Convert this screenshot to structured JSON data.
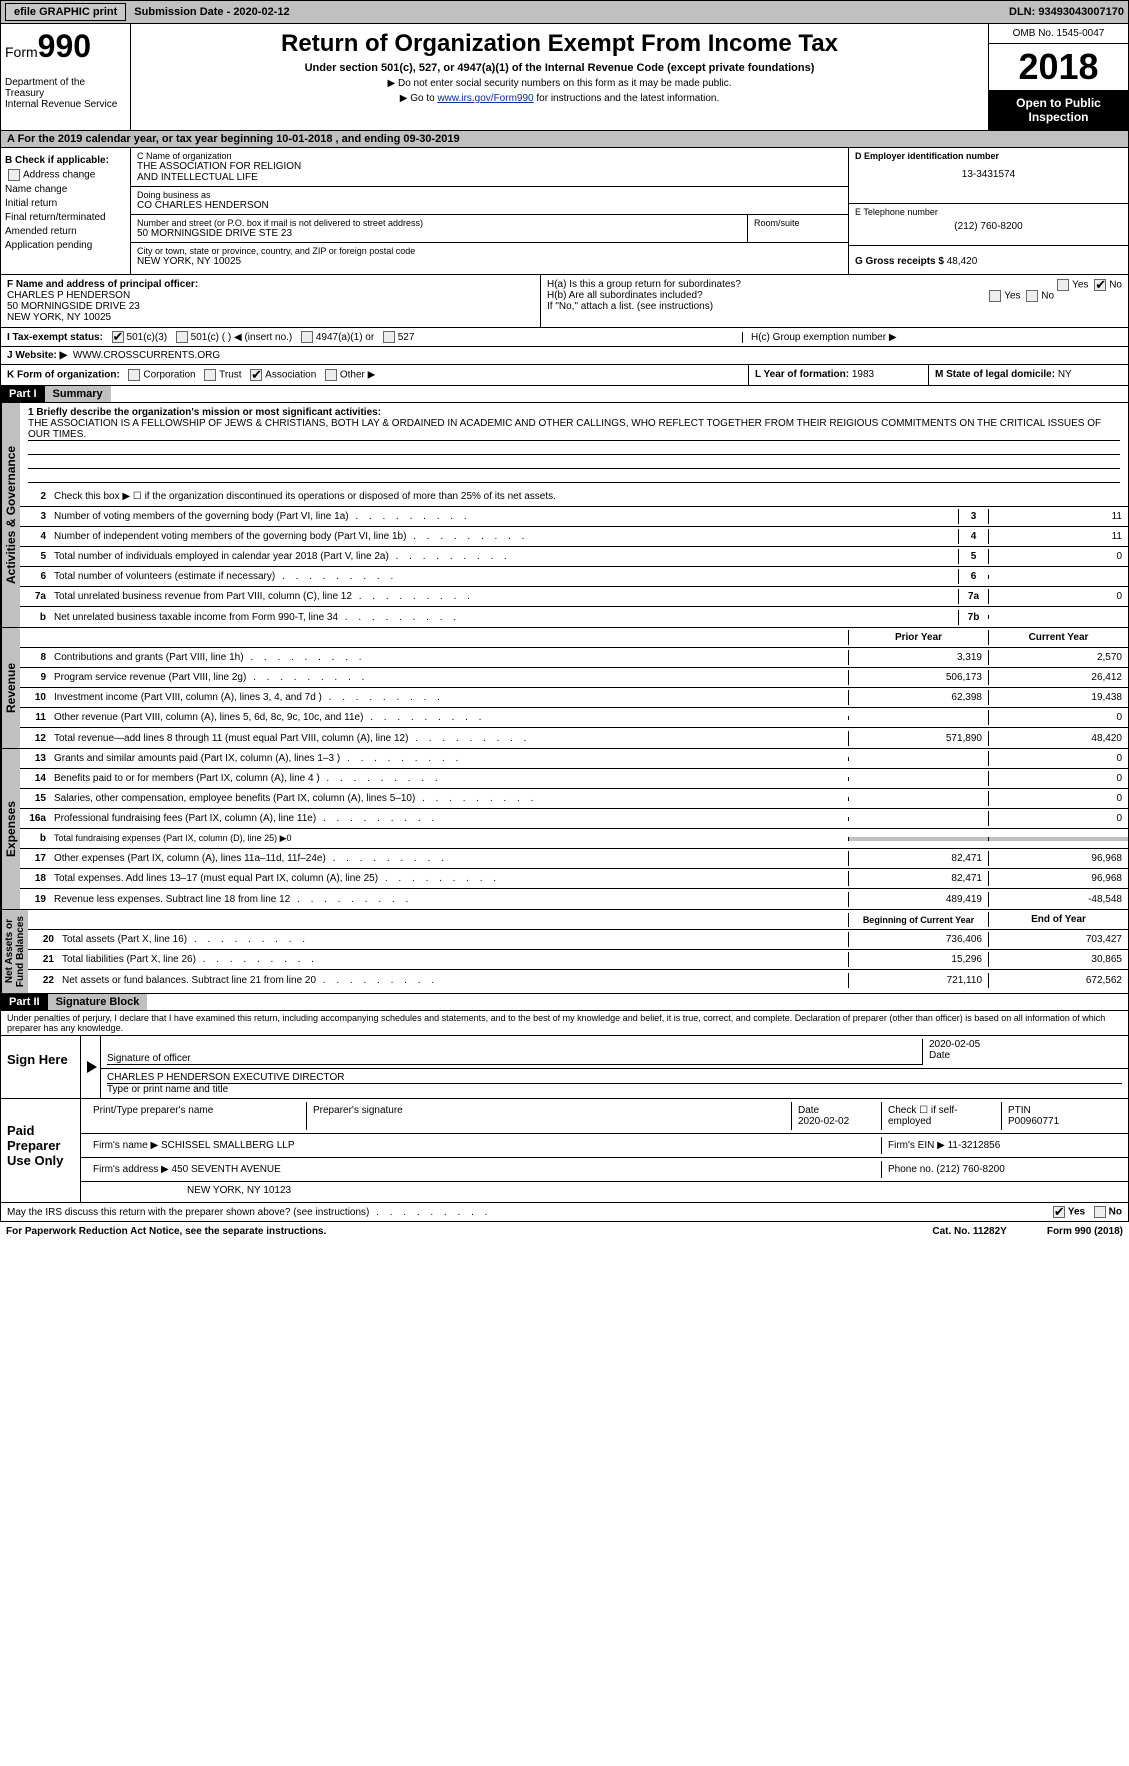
{
  "topbar": {
    "efile": "efile GRAPHIC print",
    "submission": "Submission Date - 2020-02-12",
    "dln": "DLN: 93493043007170"
  },
  "header": {
    "form_prefix": "Form",
    "form_num": "990",
    "dept": "Department of the Treasury\nInternal Revenue Service",
    "title": "Return of Organization Exempt From Income Tax",
    "sub": "Under section 501(c), 527, or 4947(a)(1) of the Internal Revenue Code (except private foundations)",
    "sub2a": "▶ Do not enter social security numbers on this form as it may be made public.",
    "sub2b_prefix": "▶ Go to ",
    "sub2b_link": "www.irs.gov/Form990",
    "sub2b_suffix": " for instructions and the latest information.",
    "omb": "OMB No. 1545-0047",
    "year": "2018",
    "open": "Open to Public\nInspection"
  },
  "rowA": "A   For the 2019 calendar year, or tax year beginning 10-01-2018      , and ending 09-30-2019",
  "colB": {
    "title": "B Check if applicable:",
    "items": [
      "Address change",
      "Name change",
      "Initial return",
      "Final return/terminated",
      "Amended return",
      "Application pending"
    ]
  },
  "colC": {
    "name_lbl": "C Name of organization",
    "name": "THE ASSOCIATION FOR RELIGION\nAND INTELLECTUAL LIFE",
    "dba_lbl": "Doing business as",
    "dba": "CO CHARLES HENDERSON",
    "addr_lbl": "Number and street (or P.O. box if mail is not delivered to street address)",
    "room_lbl": "Room/suite",
    "addr": "50 MORNINGSIDE DRIVE STE 23",
    "city_lbl": "City or town, state or province, country, and ZIP or foreign postal code",
    "city": "NEW YORK, NY  10025"
  },
  "colD": {
    "ein_lbl": "D Employer identification number",
    "ein": "13-3431574",
    "tel_lbl": "E Telephone number",
    "tel": "(212) 760-8200",
    "gross_lbl": "G Gross receipts $",
    "gross": "48,420"
  },
  "rowF": {
    "lbl": "F  Name and address of principal officer:",
    "name": "CHARLES P HENDERSON",
    "addr": "50 MORNINGSIDE DRIVE 23\nNEW YORK, NY  10025"
  },
  "rowH": {
    "ha": "H(a)   Is this a group return for subordinates?",
    "hb": "H(b)   Are all subordinates included?",
    "hb_note": "If \"No,\" attach a list. (see instructions)",
    "hc": "H(c)   Group exemption number ▶",
    "yes": "Yes",
    "no": "No"
  },
  "rowI": {
    "lbl": "I     Tax-exempt status:",
    "o1": "501(c)(3)",
    "o2": "501(c) (  ) ◀ (insert no.)",
    "o3": "4947(a)(1) or",
    "o4": "527"
  },
  "rowJ": {
    "lbl": "J    Website: ▶",
    "val": "WWW.CROSSCURRENTS.ORG"
  },
  "rowK": {
    "lbl": "K Form of organization:",
    "o1": "Corporation",
    "o2": "Trust",
    "o3": "Association",
    "o4": "Other ▶"
  },
  "rowL": {
    "lbl": "L Year of formation:",
    "val": "1983"
  },
  "rowM": {
    "lbl": "M State of legal domicile:",
    "val": "NY"
  },
  "part1": {
    "hdr": "Part I",
    "title": "Summary"
  },
  "mission": {
    "lbl": "1   Briefly describe the organization's mission or most significant activities:",
    "text": "THE ASSOCIATION IS A FELLOWSHIP OF JEWS & CHRISTIANS, BOTH LAY & ORDAINED IN ACADEMIC AND OTHER CALLINGS, WHO REFLECT TOGETHER FROM THEIR REIGIOUS COMMITMENTS ON THE CRITICAL ISSUES OF OUR TIMES."
  },
  "gov_lines": [
    {
      "n": "2",
      "t": "Check this box ▶ ☐  if the organization discontinued its operations or disposed of more than 25% of its net assets."
    },
    {
      "n": "3",
      "t": "Number of voting members of the governing body (Part VI, line 1a)",
      "box": "3",
      "v": "11"
    },
    {
      "n": "4",
      "t": "Number of independent voting members of the governing body (Part VI, line 1b)",
      "box": "4",
      "v": "11"
    },
    {
      "n": "5",
      "t": "Total number of individuals employed in calendar year 2018 (Part V, line 2a)",
      "box": "5",
      "v": "0"
    },
    {
      "n": "6",
      "t": "Total number of volunteers (estimate if necessary)",
      "box": "6",
      "v": ""
    },
    {
      "n": "7a",
      "t": "Total unrelated business revenue from Part VIII, column (C), line 12",
      "box": "7a",
      "v": "0"
    },
    {
      "n": "b",
      "t": "Net unrelated business taxable income from Form 990-T, line 34",
      "box": "7b",
      "v": ""
    }
  ],
  "col_hdrs": {
    "prior": "Prior Year",
    "current": "Current Year",
    "boy": "Beginning of Current Year",
    "eoy": "End of Year"
  },
  "rev_lines": [
    {
      "n": "8",
      "t": "Contributions and grants (Part VIII, line 1h)",
      "p": "3,319",
      "c": "2,570"
    },
    {
      "n": "9",
      "t": "Program service revenue (Part VIII, line 2g)",
      "p": "506,173",
      "c": "26,412"
    },
    {
      "n": "10",
      "t": "Investment income (Part VIII, column (A), lines 3, 4, and 7d )",
      "p": "62,398",
      "c": "19,438"
    },
    {
      "n": "11",
      "t": "Other revenue (Part VIII, column (A), lines 5, 6d, 8c, 9c, 10c, and 11e)",
      "p": "",
      "c": "0"
    },
    {
      "n": "12",
      "t": "Total revenue—add lines 8 through 11 (must equal Part VIII, column (A), line 12)",
      "p": "571,890",
      "c": "48,420"
    }
  ],
  "exp_lines": [
    {
      "n": "13",
      "t": "Grants and similar amounts paid (Part IX, column (A), lines 1–3 )",
      "p": "",
      "c": "0"
    },
    {
      "n": "14",
      "t": "Benefits paid to or for members (Part IX, column (A), line 4 )",
      "p": "",
      "c": "0"
    },
    {
      "n": "15",
      "t": "Salaries, other compensation, employee benefits (Part IX, column (A), lines 5–10)",
      "p": "",
      "c": "0"
    },
    {
      "n": "16a",
      "t": "Professional fundraising fees (Part IX, column (A), line 11e)",
      "p": "",
      "c": "0"
    },
    {
      "n": "b",
      "t": "Total fundraising expenses (Part IX, column (D), line 25) ▶0",
      "gray": true
    },
    {
      "n": "17",
      "t": "Other expenses (Part IX, column (A), lines 11a–11d, 11f–24e)",
      "p": "82,471",
      "c": "96,968"
    },
    {
      "n": "18",
      "t": "Total expenses. Add lines 13–17 (must equal Part IX, column (A), line 25)",
      "p": "82,471",
      "c": "96,968"
    },
    {
      "n": "19",
      "t": "Revenue less expenses. Subtract line 18 from line 12",
      "p": "489,419",
      "c": "-48,548"
    }
  ],
  "net_lines": [
    {
      "n": "20",
      "t": "Total assets (Part X, line 16)",
      "p": "736,406",
      "c": "703,427"
    },
    {
      "n": "21",
      "t": "Total liabilities (Part X, line 26)",
      "p": "15,296",
      "c": "30,865"
    },
    {
      "n": "22",
      "t": "Net assets or fund balances. Subtract line 21 from line 20",
      "p": "721,110",
      "c": "672,562"
    }
  ],
  "vtabs": {
    "gov": "Activities & Governance",
    "rev": "Revenue",
    "exp": "Expenses",
    "net": "Net Assets or\nFund Balances"
  },
  "part2": {
    "hdr": "Part II",
    "title": "Signature Block"
  },
  "penalties": "Under penalties of perjury, I declare that I have examined this return, including accompanying schedules and statements, and to the best of my knowledge and belief, it is true, correct, and complete. Declaration of preparer (other than officer) is based on all information of which preparer has any knowledge.",
  "sign": {
    "here": "Sign Here",
    "sig_lbl": "Signature of officer",
    "date_lbl": "Date",
    "date": "2020-02-05",
    "name": "CHARLES P HENDERSON  EXECUTIVE DIRECTOR",
    "name_lbl": "Type or print name and title"
  },
  "paid": {
    "title": "Paid Preparer Use Only",
    "prep_lbl": "Print/Type preparer's name",
    "sig_lbl": "Preparer's signature",
    "date_lbl": "Date",
    "date": "2020-02-02",
    "check_lbl": "Check ☐ if self-employed",
    "ptin_lbl": "PTIN",
    "ptin": "P00960771",
    "firm_lbl": "Firm's name   ▶",
    "firm": "SCHISSEL SMALLBERG LLP",
    "ein_lbl": "Firm's EIN ▶",
    "ein": "11-3212856",
    "addr_lbl": "Firm's address ▶",
    "addr": "450 SEVENTH AVENUE",
    "addr2": "NEW YORK, NY  10123",
    "phone_lbl": "Phone no.",
    "phone": "(212) 760-8200"
  },
  "discuss": "May the IRS discuss this return with the preparer shown above? (see instructions)",
  "footer": {
    "l": "For Paperwork Reduction Act Notice, see the separate instructions.",
    "m": "Cat. No. 11282Y",
    "r": "Form 990 (2018)"
  }
}
